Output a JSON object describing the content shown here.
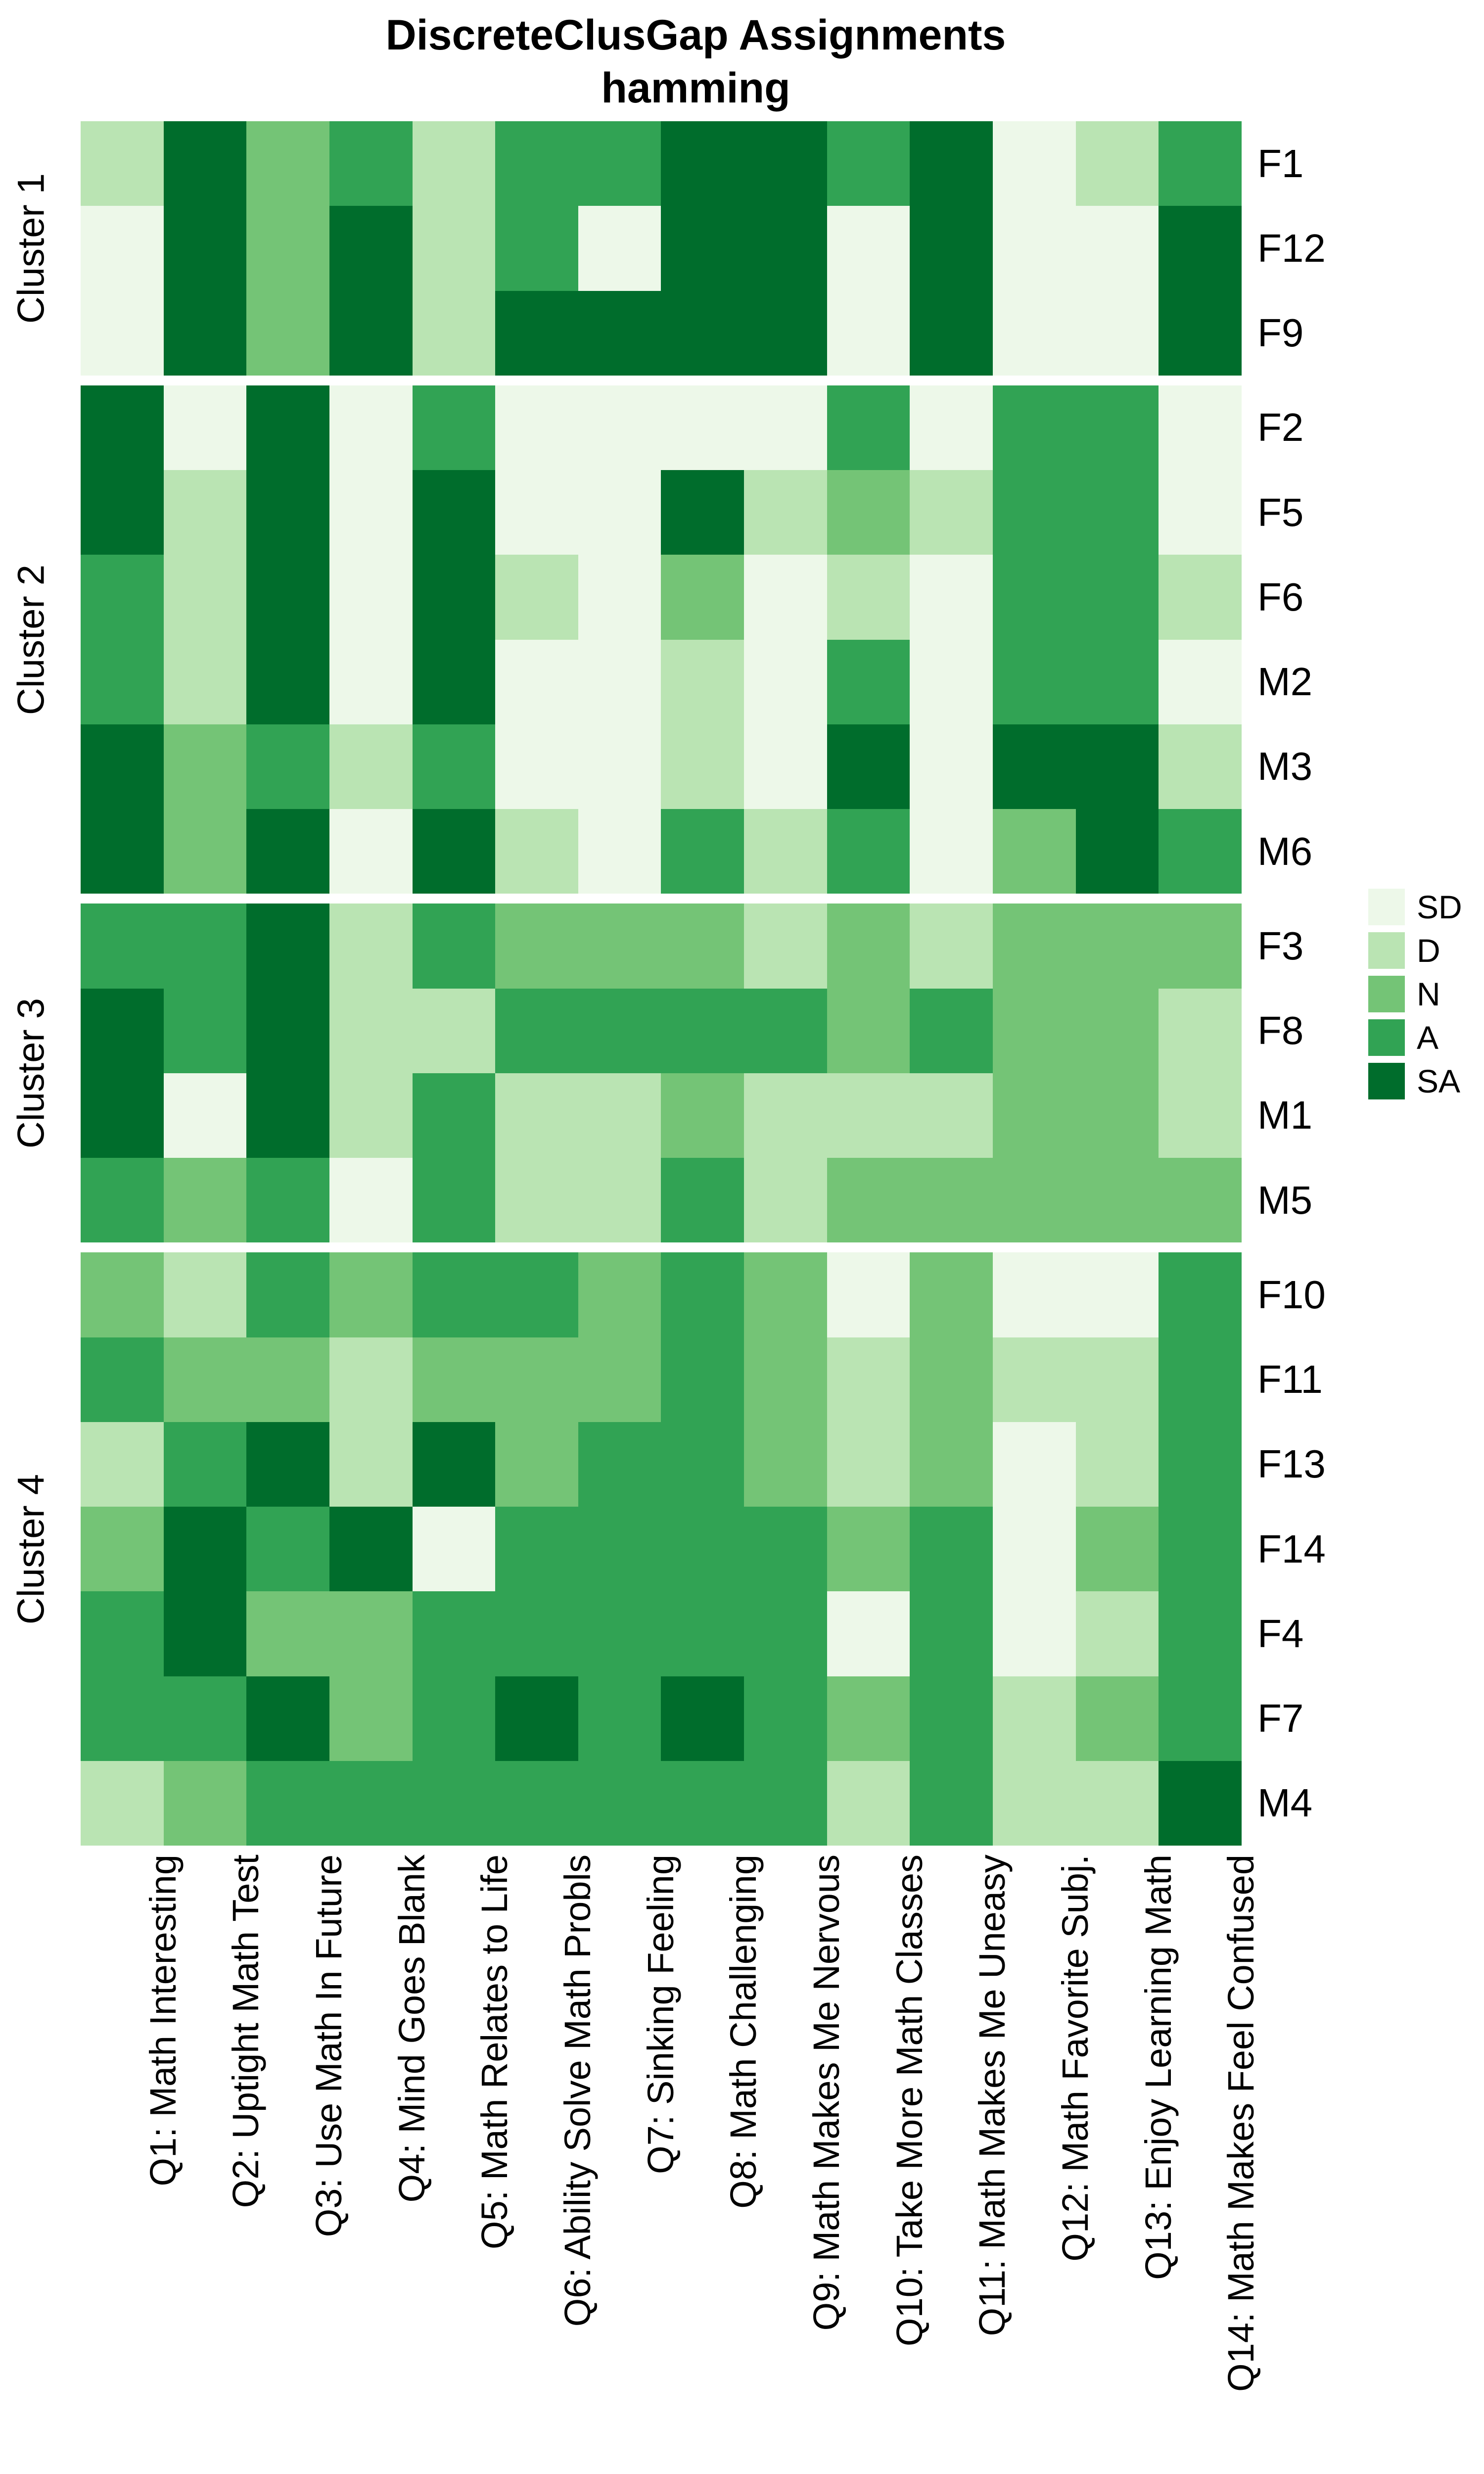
{
  "title": {
    "line1": "DiscreteClusGap Assignments",
    "line2": "hamming"
  },
  "legend": {
    "position": "right",
    "items": [
      {
        "label": "SD",
        "color": "#EDF8E9"
      },
      {
        "label": "D",
        "color": "#BAE4B3"
      },
      {
        "label": "N",
        "color": "#74C476"
      },
      {
        "label": "A",
        "color": "#31A354"
      },
      {
        "label": "SA",
        "color": "#006D2C"
      }
    ]
  },
  "chart_data": {
    "type": "heatmap",
    "grid": "off",
    "legend_position": "right",
    "value_levels": [
      "SD",
      "D",
      "N",
      "A",
      "SA"
    ],
    "palette": {
      "SD": "#EDF8E9",
      "D": "#BAE4B3",
      "N": "#74C476",
      "A": "#31A354",
      "SA": "#006D2C"
    },
    "x_categories": [
      "Q1: Math Interesting",
      "Q2: Uptight Math Test",
      "Q3: Use Math In Future",
      "Q4: Mind Goes Blank",
      "Q5: Math Relates to Life",
      "Q6: Ability Solve Math Probls",
      "Q7: Sinking Feeling",
      "Q8: Math Challenging",
      "Q9: Math Makes Me Nervous",
      "Q10: Take More Math Classes",
      "Q11: Math Makes Me Uneasy",
      "Q12: Math Favorite Subj.",
      "Q13: Enjoy Learning Math",
      "Q14: Math Makes Feel Confused"
    ],
    "clusters": [
      {
        "label": "Cluster 1",
        "rows": [
          {
            "label": "F1",
            "values": [
              "D",
              "SA",
              "N",
              "A",
              "D",
              "A",
              "A",
              "SA",
              "SA",
              "A",
              "SA",
              "SD",
              "D",
              "A"
            ]
          },
          {
            "label": "F12",
            "values": [
              "SD",
              "SA",
              "N",
              "SA",
              "D",
              "A",
              "SD",
              "SA",
              "SA",
              "SD",
              "SA",
              "SD",
              "SD",
              "SA"
            ]
          },
          {
            "label": "F9",
            "values": [
              "SD",
              "SA",
              "N",
              "SA",
              "D",
              "SA",
              "SA",
              "SA",
              "SA",
              "SD",
              "SA",
              "SD",
              "SD",
              "SA"
            ]
          }
        ]
      },
      {
        "label": "Cluster 2",
        "rows": [
          {
            "label": "F2",
            "values": [
              "SA",
              "SD",
              "SA",
              "SD",
              "A",
              "SD",
              "SD",
              "SD",
              "SD",
              "A",
              "SD",
              "A",
              "A",
              "SD"
            ]
          },
          {
            "label": "F5",
            "values": [
              "SA",
              "D",
              "SA",
              "SD",
              "SA",
              "SD",
              "SD",
              "SA",
              "D",
              "N",
              "D",
              "A",
              "A",
              "SD"
            ]
          },
          {
            "label": "F6",
            "values": [
              "A",
              "D",
              "SA",
              "SD",
              "SA",
              "D",
              "SD",
              "N",
              "SD",
              "D",
              "SD",
              "A",
              "A",
              "D"
            ]
          },
          {
            "label": "M2",
            "values": [
              "A",
              "D",
              "SA",
              "SD",
              "SA",
              "SD",
              "SD",
              "D",
              "SD",
              "A",
              "SD",
              "A",
              "A",
              "SD"
            ]
          },
          {
            "label": "M3",
            "values": [
              "SA",
              "N",
              "A",
              "D",
              "A",
              "SD",
              "SD",
              "D",
              "SD",
              "SA",
              "SD",
              "SA",
              "SA",
              "D"
            ]
          },
          {
            "label": "M6",
            "values": [
              "SA",
              "N",
              "SA",
              "SD",
              "SA",
              "D",
              "SD",
              "A",
              "D",
              "A",
              "SD",
              "N",
              "SA",
              "A"
            ]
          }
        ]
      },
      {
        "label": "Cluster 3",
        "rows": [
          {
            "label": "F3",
            "values": [
              "A",
              "A",
              "SA",
              "D",
              "A",
              "N",
              "N",
              "N",
              "D",
              "N",
              "D",
              "N",
              "N",
              "N"
            ]
          },
          {
            "label": "F8",
            "values": [
              "SA",
              "A",
              "SA",
              "D",
              "D",
              "A",
              "A",
              "A",
              "A",
              "N",
              "A",
              "N",
              "N",
              "D"
            ]
          },
          {
            "label": "M1",
            "values": [
              "SA",
              "SD",
              "SA",
              "D",
              "A",
              "D",
              "D",
              "N",
              "D",
              "D",
              "D",
              "N",
              "N",
              "D"
            ]
          },
          {
            "label": "M5",
            "values": [
              "A",
              "N",
              "A",
              "SD",
              "A",
              "D",
              "D",
              "A",
              "D",
              "N",
              "N",
              "N",
              "N",
              "N"
            ]
          }
        ]
      },
      {
        "label": "Cluster 4",
        "rows": [
          {
            "label": "F10",
            "values": [
              "N",
              "D",
              "A",
              "N",
              "A",
              "A",
              "N",
              "A",
              "N",
              "SD",
              "N",
              "SD",
              "SD",
              "A"
            ]
          },
          {
            "label": "F11",
            "values": [
              "A",
              "N",
              "N",
              "D",
              "N",
              "N",
              "N",
              "A",
              "N",
              "D",
              "N",
              "D",
              "D",
              "A"
            ]
          },
          {
            "label": "F13",
            "values": [
              "D",
              "A",
              "SA",
              "D",
              "SA",
              "N",
              "A",
              "A",
              "N",
              "D",
              "N",
              "SD",
              "D",
              "A"
            ]
          },
          {
            "label": "F14",
            "values": [
              "N",
              "SA",
              "A",
              "SA",
              "SD",
              "A",
              "A",
              "A",
              "A",
              "N",
              "A",
              "SD",
              "N",
              "A"
            ]
          },
          {
            "label": "F4",
            "values": [
              "A",
              "SA",
              "N",
              "N",
              "A",
              "A",
              "A",
              "A",
              "A",
              "SD",
              "A",
              "SD",
              "D",
              "A"
            ]
          },
          {
            "label": "F7",
            "values": [
              "A",
              "A",
              "SA",
              "N",
              "A",
              "SA",
              "A",
              "SA",
              "A",
              "N",
              "A",
              "D",
              "N",
              "A"
            ]
          },
          {
            "label": "M4",
            "values": [
              "D",
              "N",
              "A",
              "A",
              "A",
              "A",
              "A",
              "A",
              "A",
              "D",
              "A",
              "D",
              "D",
              "SA"
            ]
          }
        ]
      }
    ]
  }
}
